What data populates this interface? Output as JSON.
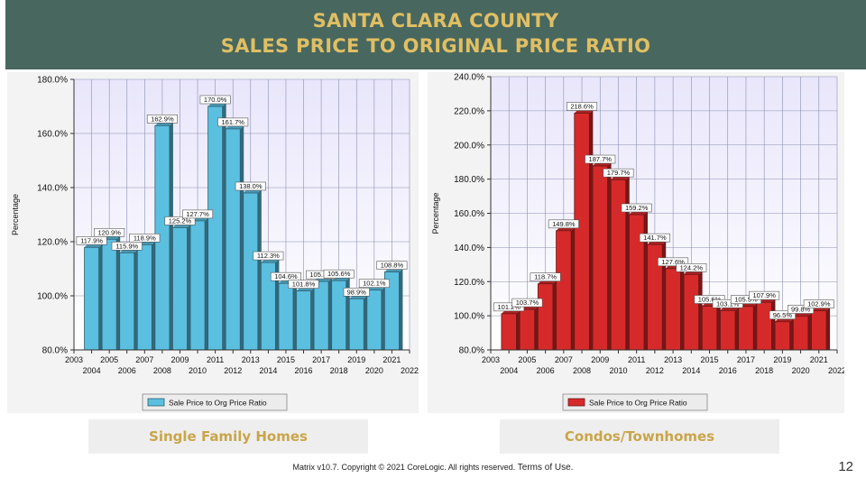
{
  "header": {
    "title_line1": "SANTA CLARA COUNTY",
    "title_line2": "SALES PRICE TO ORIGINAL PRICE RATIO",
    "bg_color": "#48675f",
    "text_color": "#e0bf63"
  },
  "footer": {
    "copyright": "Matrix v10.7. Copyright © 2021 CoreLogic. All rights reserved.",
    "terms_link": "Terms of Use."
  },
  "page_number": "12",
  "chart_data": [
    {
      "type": "bar",
      "caption": "Single Family Homes",
      "ylabel": "Percentage",
      "xlabel": "",
      "ylim": [
        80,
        180
      ],
      "yticks": [
        "80.0%",
        "100.0%",
        "120.0%",
        "140.0%",
        "160.0%",
        "180.0%"
      ],
      "x_range": [
        2003,
        2022
      ],
      "xticks_odd": [
        "2003",
        "2005",
        "2007",
        "2009",
        "2011",
        "2013",
        "2015",
        "2017",
        "2019",
        "2021"
      ],
      "xticks_even": [
        "2004",
        "2006",
        "2008",
        "2010",
        "2012",
        "2014",
        "2016",
        "2018",
        "2020",
        "2022"
      ],
      "grid": true,
      "bar_color": "#5bbfe0",
      "legend": {
        "label": "Sale Price to Org Price Ratio",
        "position": "bottom"
      },
      "series": [
        {
          "name": "Sale Price to Org Price Ratio",
          "x": [
            2004,
            2005,
            2006,
            2007,
            2008,
            2009,
            2010,
            2011,
            2012,
            2013,
            2014,
            2015,
            2016,
            2017,
            2018,
            2019,
            2020,
            2021
          ],
          "values": [
            117.9,
            120.9,
            115.9,
            118.9,
            162.9,
            125.2,
            127.7,
            170.0,
            161.7,
            138.0,
            112.3,
            104.6,
            101.8,
            105.3,
            105.6,
            98.9,
            102.1,
            108.8
          ],
          "labels": [
            "117.9%",
            "120.9%",
            "115.9%",
            "118.9%",
            "162.9%",
            "125.2%",
            "127.7%",
            "170.0%",
            "161.7%",
            "138.0%",
            "112.3%",
            "104.6%",
            "101.8%",
            "105.3%",
            "105.6%",
            "98.9%",
            "102.1%",
            "108.8%"
          ]
        }
      ]
    },
    {
      "type": "bar",
      "caption": "Condos/Townhomes",
      "ylabel": "Percentage",
      "xlabel": "",
      "ylim": [
        80,
        240
      ],
      "yticks": [
        "80.0%",
        "100.0%",
        "120.0%",
        "140.0%",
        "160.0%",
        "180.0%",
        "200.0%",
        "220.0%",
        "240.0%"
      ],
      "x_range": [
        2003,
        2022
      ],
      "xticks_odd": [
        "2003",
        "2005",
        "2007",
        "2009",
        "2011",
        "2013",
        "2015",
        "2017",
        "2019",
        "2021"
      ],
      "xticks_even": [
        "2004",
        "2006",
        "2008",
        "2010",
        "2012",
        "2014",
        "2016",
        "2018",
        "2020",
        "2022"
      ],
      "grid": true,
      "bar_color": "#d62a2a",
      "legend": {
        "label": "Sale Price to Org Price Ratio",
        "position": "bottom"
      },
      "series": [
        {
          "name": "Sale Price to Org Price Ratio",
          "x": [
            2004,
            2005,
            2006,
            2007,
            2008,
            2009,
            2010,
            2011,
            2012,
            2013,
            2014,
            2015,
            2016,
            2017,
            2018,
            2019,
            2020,
            2021
          ],
          "values": [
            101.2,
            103.7,
            118.7,
            149.8,
            218.6,
            187.7,
            179.7,
            159.2,
            141.7,
            127.6,
            124.2,
            105.6,
            103.1,
            105.5,
            107.9,
            96.5,
            99.8,
            102.9
          ],
          "labels": [
            "101.2%",
            "103.7%",
            "118.7%",
            "149.8%",
            "218.6%",
            "187.7%",
            "179.7%",
            "159.2%",
            "141.7%",
            "127.6%",
            "124.2%",
            "105.6%",
            "103.1%",
            "105.5%",
            "107.9%",
            "96.5%",
            "99.8%",
            "102.9%"
          ]
        }
      ]
    }
  ]
}
